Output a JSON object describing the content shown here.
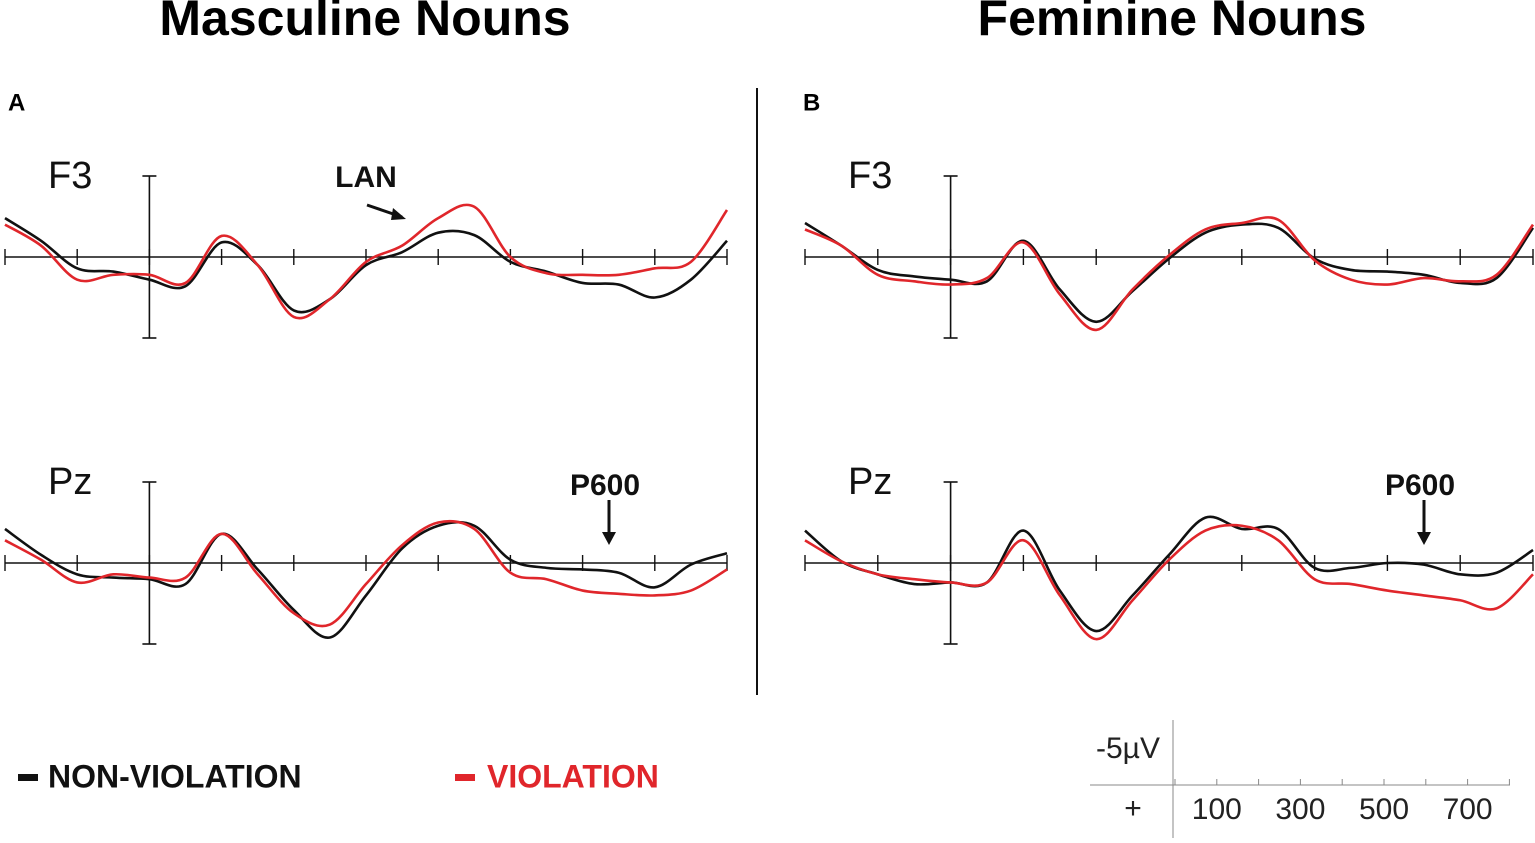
{
  "titles": [
    "Masculine Nouns",
    "Feminine Nouns"
  ],
  "panel_letters": [
    "A",
    "B"
  ],
  "chart_data": [
    {
      "type": "line",
      "label": "F3",
      "annotation": "LAN",
      "invert_y": true,
      "xlim": [
        -200,
        800
      ],
      "ylim": [
        -5,
        5
      ],
      "xticks": [
        -200,
        -100,
        0,
        100,
        200,
        300,
        400,
        500,
        600,
        700,
        800
      ],
      "x": [
        -200,
        -150,
        -100,
        -50,
        0,
        50,
        100,
        150,
        200,
        250,
        300,
        350,
        400,
        450,
        500,
        550,
        600,
        650,
        700,
        750,
        800
      ],
      "series": [
        {
          "name": "NON-VIOLATION",
          "color": "#111111",
          "values": [
            -2.4,
            -1.0,
            0.7,
            0.9,
            1.4,
            1.8,
            -0.9,
            0.5,
            3.3,
            2.6,
            0.5,
            -0.3,
            -1.5,
            -1.35,
            0.3,
            0.9,
            1.6,
            1.7,
            2.5,
            1.4,
            -1.0
          ]
        },
        {
          "name": "VIOLATION",
          "color": "#e0262b",
          "values": [
            -2.0,
            -0.7,
            1.4,
            1.1,
            1.1,
            1.6,
            -1.3,
            0.5,
            3.7,
            2.6,
            0.3,
            -0.7,
            -2.4,
            -3.1,
            0,
            1.0,
            1.1,
            1.1,
            0.7,
            0.3,
            -2.9
          ]
        }
      ]
    },
    {
      "type": "line",
      "label": "Pz",
      "annotation": "P600",
      "invert_y": true,
      "xlim": [
        -200,
        800
      ],
      "ylim": [
        -5,
        5
      ],
      "xticks": [
        -200,
        -100,
        0,
        100,
        200,
        300,
        400,
        500,
        600,
        700,
        800
      ],
      "x": [
        -200,
        -150,
        -100,
        -50,
        0,
        50,
        100,
        150,
        200,
        250,
        300,
        350,
        400,
        450,
        500,
        550,
        600,
        650,
        700,
        750,
        800
      ],
      "series": [
        {
          "name": "NON-VIOLATION",
          "color": "#111111",
          "values": [
            -2.1,
            -0.5,
            0.7,
            0.9,
            1.0,
            1.3,
            -1.8,
            0.4,
            2.9,
            4.6,
            2.0,
            -0.9,
            -2.3,
            -2.3,
            -0.2,
            0.3,
            0.4,
            0.6,
            1.5,
            0.1,
            -0.6
          ]
        },
        {
          "name": "VIOLATION",
          "color": "#e0262b",
          "values": [
            -1.4,
            -0.2,
            1.2,
            0.7,
            0.9,
            0.9,
            -1.8,
            0.7,
            3.1,
            3.8,
            1.3,
            -1.1,
            -2.5,
            -2.1,
            0.6,
            1.0,
            1.7,
            1.9,
            2.0,
            1.7,
            0.4
          ]
        }
      ]
    },
    {
      "type": "line",
      "label": "F3",
      "invert_y": true,
      "xlim": [
        -200,
        800
      ],
      "ylim": [
        -5,
        5
      ],
      "xticks": [
        -200,
        -100,
        0,
        100,
        200,
        300,
        400,
        500,
        600,
        700,
        800
      ],
      "x": [
        -200,
        -150,
        -100,
        -50,
        0,
        50,
        100,
        150,
        200,
        250,
        300,
        350,
        400,
        450,
        500,
        550,
        600,
        650,
        700,
        750,
        800
      ],
      "series": [
        {
          "name": "NON-VIOLATION",
          "color": "#111111",
          "values": [
            -2.1,
            -0.7,
            0.8,
            1.2,
            1.4,
            1.5,
            -1.0,
            2.0,
            4.0,
            2.1,
            0.1,
            -1.5,
            -2.0,
            -1.8,
            0.1,
            0.8,
            0.9,
            1.1,
            1.6,
            1.3,
            -1.8
          ]
        },
        {
          "name": "VIOLATION",
          "color": "#e0262b",
          "values": [
            -1.7,
            -0.7,
            1.1,
            1.5,
            1.7,
            1.3,
            -0.9,
            2.3,
            4.5,
            2.0,
            -0.1,
            -1.7,
            -2.1,
            -2.3,
            0.2,
            1.4,
            1.7,
            1.3,
            1.5,
            1.1,
            -2.0
          ]
        }
      ]
    },
    {
      "type": "line",
      "label": "Pz",
      "annotation": "P600",
      "invert_y": true,
      "xlim": [
        -200,
        800
      ],
      "ylim": [
        -5,
        5
      ],
      "xticks": [
        -200,
        -100,
        0,
        100,
        200,
        300,
        400,
        500,
        600,
        700,
        800
      ],
      "x": [
        -200,
        -150,
        -100,
        -50,
        0,
        50,
        100,
        150,
        200,
        250,
        300,
        350,
        400,
        450,
        500,
        550,
        600,
        650,
        700,
        750,
        800
      ],
      "series": [
        {
          "name": "NON-VIOLATION",
          "color": "#111111",
          "values": [
            -2.0,
            -0.1,
            0.7,
            1.3,
            1.2,
            1.2,
            -2.0,
            1.7,
            4.2,
            2.0,
            -0.5,
            -2.8,
            -2.1,
            -2.1,
            0.3,
            0.3,
            0,
            0.1,
            0.7,
            0.6,
            -0.8
          ]
        },
        {
          "name": "VIOLATION",
          "color": "#e0262b",
          "values": [
            -1.4,
            -0.1,
            0.7,
            1.0,
            1.2,
            1.2,
            -1.4,
            2.0,
            4.7,
            2.3,
            -0.2,
            -2.0,
            -2.3,
            -1.4,
            1.0,
            1.3,
            1.7,
            2.0,
            2.3,
            2.8,
            0.7
          ]
        }
      ]
    }
  ],
  "scale_bar": {
    "voltage_label": "-5µV",
    "polarity_label": "+",
    "ticks": [
      0,
      100,
      200,
      300,
      400,
      500,
      600,
      700,
      800
    ],
    "labels": [
      100,
      300,
      500,
      700
    ]
  }
}
